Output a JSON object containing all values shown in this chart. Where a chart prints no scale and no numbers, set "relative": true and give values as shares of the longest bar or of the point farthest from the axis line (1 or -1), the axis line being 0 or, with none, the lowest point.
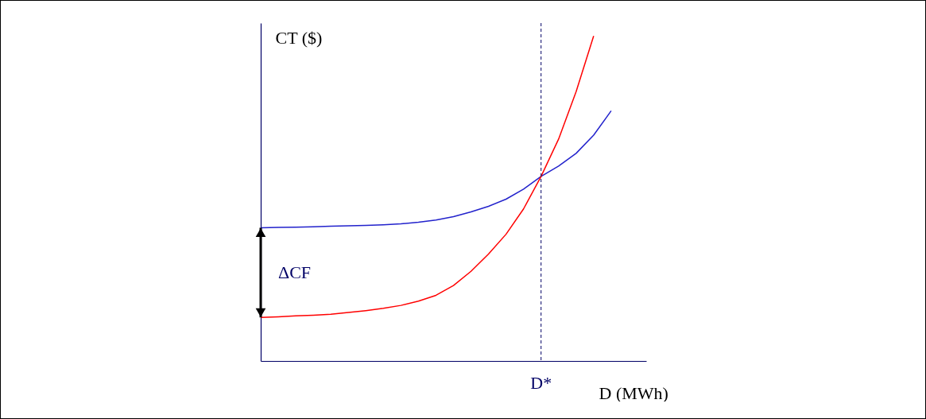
{
  "chart_data": {
    "type": "line",
    "relative": true,
    "xlabel": "D (MWh)",
    "ylabel": "CT ($)",
    "categories": [
      null,
      null,
      null,
      null,
      null,
      null,
      null,
      null,
      null,
      null,
      null,
      null,
      null,
      null,
      null,
      null,
      null,
      null,
      null,
      null,
      null,
      null,
      null
    ],
    "series": [
      {
        "color": "#2222cc",
        "values": [
          0.41,
          0.411,
          0.412,
          0.413,
          0.415,
          0.416,
          0.417,
          0.419,
          0.422,
          0.427,
          0.434,
          0.444,
          0.459,
          0.476,
          0.498,
          0.529,
          0.568,
          0.6,
          0.639,
          0.695,
          0.77,
          null,
          null
        ]
      },
      {
        "color": "#ff0000",
        "values": [
          0.134,
          0.136,
          0.139,
          0.141,
          0.144,
          0.149,
          0.155,
          0.162,
          0.171,
          0.184,
          0.202,
          0.232,
          0.276,
          0.329,
          0.39,
          0.468,
          0.568,
          0.683,
          0.829,
          1.0,
          null,
          null,
          null
        ]
      }
    ],
    "ref_lines": [
      {
        "axis": "x",
        "label": "D*",
        "color": "#000066",
        "line_style": "dashed"
      }
    ],
    "annotations": [
      "ΔCF"
    ],
    "marker": "none",
    "line_style": "solid"
  }
}
